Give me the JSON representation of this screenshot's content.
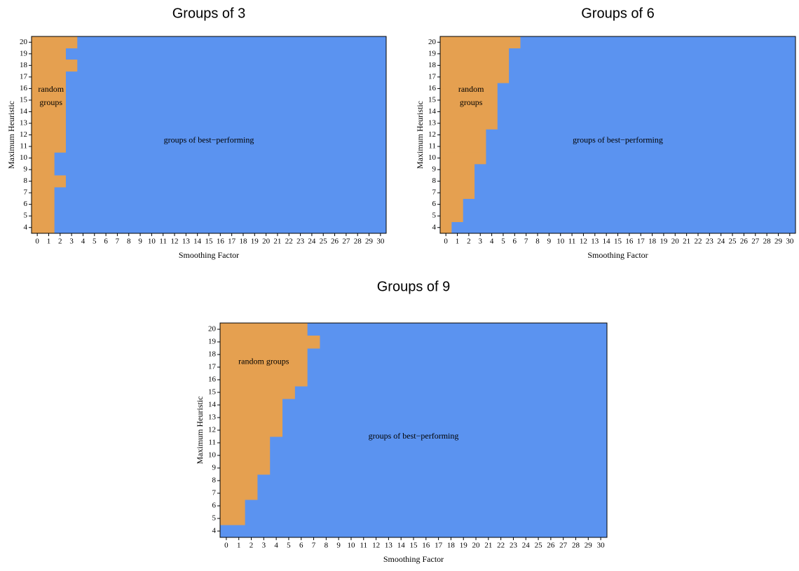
{
  "chart_data": [
    {
      "type": "region",
      "title": "Groups of 3",
      "xlabel": "Smoothing Factor",
      "ylabel": "Maximum Heuristic",
      "xlim": [
        -0.5,
        30.5
      ],
      "ylim": [
        3.5,
        20.5
      ],
      "xticks": [
        0,
        1,
        2,
        3,
        4,
        5,
        6,
        7,
        8,
        9,
        10,
        11,
        12,
        13,
        14,
        15,
        16,
        17,
        18,
        19,
        20,
        21,
        22,
        23,
        24,
        25,
        26,
        27,
        28,
        29,
        30
      ],
      "yticks": [
        4,
        5,
        6,
        7,
        8,
        9,
        10,
        11,
        12,
        13,
        14,
        15,
        16,
        17,
        18,
        19,
        20
      ],
      "y": [
        4,
        5,
        6,
        7,
        8,
        9,
        10,
        11,
        12,
        13,
        14,
        15,
        16,
        17,
        18,
        19,
        20
      ],
      "boundary": [
        1.5,
        1.5,
        1.5,
        1.5,
        2.5,
        1.5,
        1.5,
        2.5,
        2.5,
        2.5,
        2.5,
        2.5,
        2.5,
        2.5,
        3.5,
        2.5,
        3.5
      ],
      "left_color": "#e5a050",
      "right_color": "#5b93f0",
      "left_label": [
        "random",
        "groups"
      ],
      "right_label": [
        "groups of best−performing"
      ]
    },
    {
      "type": "region",
      "title": "Groups of 6",
      "xlabel": "Smoothing Factor",
      "ylabel": "Maximum Heuristic",
      "xlim": [
        -0.5,
        30.5
      ],
      "ylim": [
        3.5,
        20.5
      ],
      "xticks": [
        0,
        1,
        2,
        3,
        4,
        5,
        6,
        7,
        8,
        9,
        10,
        11,
        12,
        13,
        14,
        15,
        16,
        17,
        18,
        19,
        20,
        21,
        22,
        23,
        24,
        25,
        26,
        27,
        28,
        29,
        30
      ],
      "yticks": [
        4,
        5,
        6,
        7,
        8,
        9,
        10,
        11,
        12,
        13,
        14,
        15,
        16,
        17,
        18,
        19,
        20
      ],
      "y": [
        4,
        5,
        6,
        7,
        8,
        9,
        10,
        11,
        12,
        13,
        14,
        15,
        16,
        17,
        18,
        19,
        20
      ],
      "boundary": [
        0.5,
        1.5,
        1.5,
        2.5,
        2.5,
        2.5,
        3.5,
        3.5,
        3.5,
        4.5,
        4.5,
        4.5,
        4.5,
        5.5,
        5.5,
        5.5,
        6.5
      ],
      "left_color": "#e5a050",
      "right_color": "#5b93f0",
      "left_label": [
        "random",
        "groups"
      ],
      "right_label": [
        "groups of best−performing"
      ]
    },
    {
      "type": "region",
      "title": "Groups of 9",
      "xlabel": "Smoothing Factor",
      "ylabel": "Maximum Heuristic",
      "xlim": [
        -0.5,
        30.5
      ],
      "ylim": [
        3.5,
        20.5
      ],
      "xticks": [
        0,
        1,
        2,
        3,
        4,
        5,
        6,
        7,
        8,
        9,
        10,
        11,
        12,
        13,
        14,
        15,
        16,
        17,
        18,
        19,
        20,
        21,
        22,
        23,
        24,
        25,
        26,
        27,
        28,
        29,
        30
      ],
      "yticks": [
        4,
        5,
        6,
        7,
        8,
        9,
        10,
        11,
        12,
        13,
        14,
        15,
        16,
        17,
        18,
        19,
        20
      ],
      "y": [
        4,
        5,
        6,
        7,
        8,
        9,
        10,
        11,
        12,
        13,
        14,
        15,
        16,
        17,
        18,
        19,
        20
      ],
      "boundary": [
        -0.5,
        1.5,
        1.5,
        2.5,
        2.5,
        3.5,
        3.5,
        3.5,
        4.5,
        4.5,
        4.5,
        5.5,
        6.5,
        6.5,
        6.5,
        7.5,
        6.5
      ],
      "left_color": "#e5a050",
      "right_color": "#5b93f0",
      "left_label": [
        "random groups"
      ],
      "right_label": [
        "groups of best−performing"
      ]
    }
  ]
}
